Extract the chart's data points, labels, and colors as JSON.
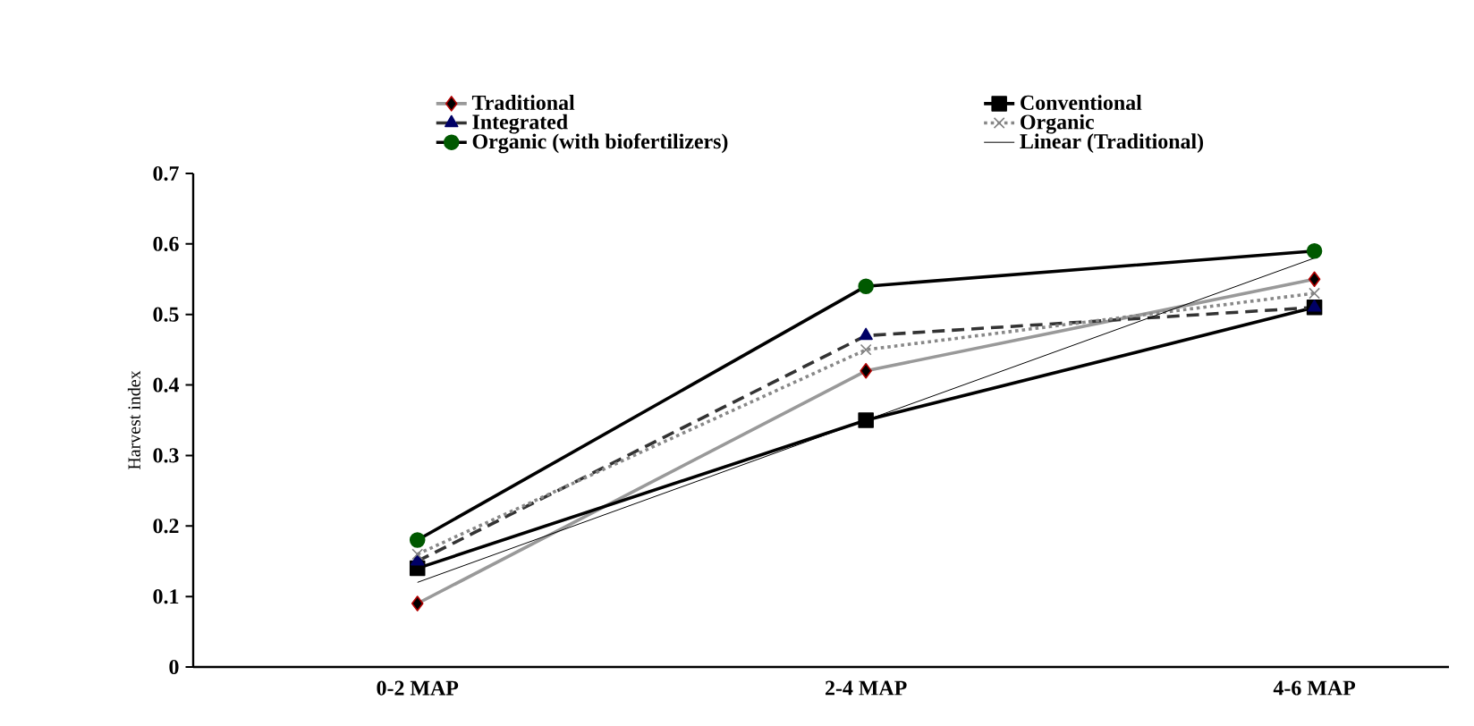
{
  "chart_data": {
    "type": "line",
    "ylabel": "Harvest index",
    "categories": [
      "0-2 MAP",
      "2-4 MAP",
      "4-6 MAP"
    ],
    "series": [
      {
        "name": "Traditional",
        "color": "#999999",
        "marker": "diamond",
        "line_style": "solid",
        "values": [
          0.09,
          0.42,
          0.55
        ]
      },
      {
        "name": "Conventional",
        "color": "#000000",
        "marker": "square",
        "line_style": "solid",
        "values": [
          0.14,
          0.35,
          0.51
        ]
      },
      {
        "name": "Integrated",
        "color": "#333333",
        "marker": "triangle",
        "line_style": "dashed",
        "values": [
          0.15,
          0.47,
          0.51
        ]
      },
      {
        "name": "Organic",
        "color": "#888888",
        "marker": "cross",
        "line_style": "dotted",
        "values": [
          0.16,
          0.45,
          0.53
        ]
      },
      {
        "name": "Organic (with biofertilizers)",
        "color": "#000000",
        "marker": "circle",
        "line_style": "solid",
        "values": [
          0.18,
          0.54,
          0.59
        ]
      },
      {
        "name": "Linear (Traditional)",
        "color": "#000000",
        "marker": "none",
        "line_style": "solid",
        "values": [
          0.12,
          0.35,
          0.58
        ]
      }
    ],
    "ylim": [
      0,
      0.7
    ],
    "yticks": [
      0,
      0.1,
      0.2,
      0.3,
      0.4,
      0.5,
      0.6,
      0.7
    ],
    "grid": false,
    "legend": "top"
  }
}
